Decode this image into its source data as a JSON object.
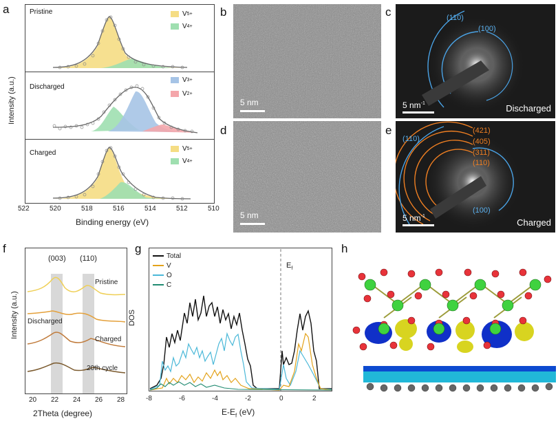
{
  "panel_labels": {
    "a": "a",
    "b": "b",
    "c": "c",
    "d": "d",
    "e": "e",
    "f": "f",
    "g": "g",
    "h": "h"
  },
  "panel_a": {
    "ylabel": "Intensity (a.u.)",
    "xlabel": "Binding energy (eV)",
    "xticks": [
      "522",
      "520",
      "518",
      "516",
      "514",
      "512",
      "510"
    ],
    "subplots": [
      {
        "title": "Pristine",
        "legend": [
          {
            "label": "V",
            "sup": "5+",
            "color": "#f5dd84"
          },
          {
            "label": "V",
            "sup": "4+",
            "color": "#9fdfb0"
          }
        ]
      },
      {
        "title": "Discharged",
        "legend": [
          {
            "label": "V",
            "sup": "3+",
            "color": "#a6c4e6"
          },
          {
            "label": "V",
            "sup": "2+",
            "color": "#f4a6ab"
          }
        ]
      },
      {
        "title": "Charged",
        "legend": [
          {
            "label": "V",
            "sup": "5+",
            "color": "#f5dd84"
          },
          {
            "label": "V",
            "sup": "4+",
            "color": "#9fdfb0"
          }
        ]
      }
    ]
  },
  "panel_b": {
    "scale": "5 nm"
  },
  "panel_c": {
    "scale": "5 nm",
    "scale_sup": "-1",
    "rings": [
      "(110)",
      "(100)"
    ],
    "state": "Discharged"
  },
  "panel_d": {
    "scale": "5 nm"
  },
  "panel_e": {
    "scale": "5 nm",
    "scale_sup": "-1",
    "rings_orange": [
      "(421)",
      "(405)",
      "(311)",
      "(110)"
    ],
    "rings_blue": [
      "(110)",
      "(100)"
    ],
    "state": "Charged"
  },
  "panel_f": {
    "ylabel": "Intensity (a.u.)",
    "xlabel": "2Theta (degree)",
    "xticks": [
      "20",
      "22",
      "24",
      "26",
      "28"
    ],
    "peaks": [
      "(003)",
      "(110)"
    ],
    "traces": [
      {
        "label": "Pristine",
        "color": "#efcf55"
      },
      {
        "label": "Discharged",
        "color": "#e4a03a"
      },
      {
        "label": "Charged",
        "color": "#c07a3a"
      },
      {
        "label": "20th cycle",
        "color": "#7b5a2e"
      }
    ]
  },
  "chart_data": {
    "type": "line",
    "xlabel": "E-E",
    "xlabel_sub": "f",
    "xlabel_unit": " (eV)",
    "ylabel": "DOS",
    "xlim": [
      -8,
      3
    ],
    "xticks": [
      "-8",
      "-6",
      "-4",
      "-2",
      "0",
      "2"
    ],
    "fermi_label": "E",
    "fermi_sub": "f",
    "series": [
      {
        "name": "Total",
        "color": "#111111"
      },
      {
        "name": "V",
        "color": "#e3a21a"
      },
      {
        "name": "O",
        "color": "#4ab8d8"
      },
      {
        "name": "C",
        "color": "#1f8a70"
      }
    ]
  }
}
